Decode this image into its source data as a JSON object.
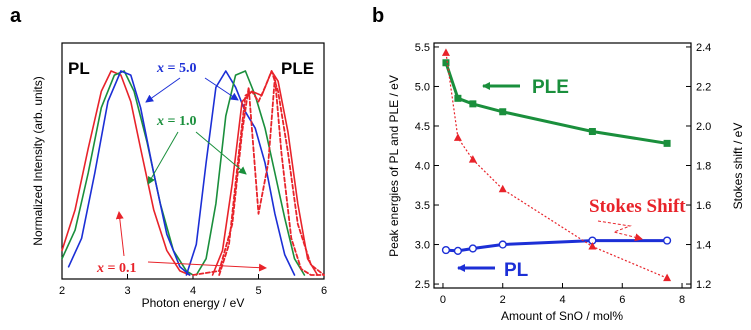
{
  "colors": {
    "x_0_1": "#e8232a",
    "x_1_0": "#1a8f3c",
    "x_5_0": "#1c2fd6",
    "pl": "#1c2fd6",
    "ple": "#1a8f3c",
    "stokes": "#e8232a"
  },
  "chart_data": [
    {
      "panel_label": "a",
      "type": "line",
      "xlabel": "Photon energy / eV",
      "ylabel": "Normalized Intensity (arb. units)",
      "xlim": [
        2,
        6
      ],
      "xticks": [
        "2",
        "3",
        "4",
        "5",
        "6"
      ],
      "region_labels": {
        "pl": "PL",
        "ple": "PLE"
      },
      "x_label_prefix": "x",
      "annotations": [
        {
          "text": " = 5.0",
          "series": "x = 5.0"
        },
        {
          "text": " = 1.0",
          "series": "x = 1.0"
        },
        {
          "text": " = 0.1",
          "series": "x = 0.1"
        }
      ],
      "series": [
        {
          "name": "x = 0.1",
          "kind": "PL",
          "line": "solid",
          "x": [
            2.0,
            2.2,
            2.4,
            2.6,
            2.75,
            2.9,
            3.05,
            3.2,
            3.4,
            3.6,
            3.8,
            3.95
          ],
          "y": [
            0.12,
            0.32,
            0.62,
            0.9,
            1.0,
            0.98,
            0.85,
            0.62,
            0.32,
            0.12,
            0.02,
            0.0
          ]
        },
        {
          "name": "x = 1.0",
          "kind": "PL",
          "line": "solid",
          "x": [
            2.0,
            2.2,
            2.4,
            2.6,
            2.8,
            2.95,
            3.1,
            3.3,
            3.5,
            3.7,
            3.9,
            4.0
          ],
          "y": [
            0.08,
            0.22,
            0.5,
            0.82,
            0.98,
            1.0,
            0.9,
            0.65,
            0.35,
            0.12,
            0.02,
            0.0
          ]
        },
        {
          "name": "x = 5.0",
          "kind": "PL",
          "line": "solid",
          "x": [
            2.1,
            2.3,
            2.5,
            2.7,
            2.9,
            3.05,
            3.2,
            3.4,
            3.6,
            3.8,
            3.95
          ],
          "y": [
            0.04,
            0.18,
            0.5,
            0.85,
            1.0,
            0.98,
            0.82,
            0.5,
            0.2,
            0.04,
            0.0
          ]
        },
        {
          "name": "x = 5.0",
          "kind": "PLE",
          "line": "solid",
          "x": [
            3.9,
            4.05,
            4.2,
            4.35,
            4.5,
            4.65,
            4.8,
            4.95,
            5.1,
            5.25,
            5.4,
            5.55
          ],
          "y": [
            0.0,
            0.15,
            0.55,
            0.92,
            1.0,
            0.92,
            0.8,
            0.72,
            0.55,
            0.3,
            0.1,
            0.0
          ]
        },
        {
          "name": "x = 1.0",
          "kind": "PLE",
          "line": "solid",
          "x": [
            4.05,
            4.2,
            4.35,
            4.5,
            4.65,
            4.8,
            4.95,
            5.1,
            5.25,
            5.4,
            5.55,
            5.7
          ],
          "y": [
            0.0,
            0.08,
            0.35,
            0.78,
            0.98,
            1.0,
            0.88,
            0.72,
            0.5,
            0.28,
            0.08,
            0.0
          ]
        },
        {
          "name": "x = 0.1",
          "kind": "PLE",
          "line": "solid",
          "x": [
            4.3,
            4.45,
            4.6,
            4.75,
            4.9,
            5.05,
            5.2,
            5.3,
            5.45,
            5.6,
            5.75,
            5.9
          ],
          "y": [
            0.0,
            0.12,
            0.45,
            0.85,
            0.9,
            0.88,
            1.0,
            0.95,
            0.7,
            0.35,
            0.08,
            0.0
          ]
        },
        {
          "name": "x = 0.1",
          "kind": "PL",
          "line": "dashed",
          "x": [
            4.0,
            4.4,
            4.6,
            4.75,
            4.85,
            5.0,
            5.15,
            5.25,
            5.35,
            5.5,
            5.65,
            5.8,
            6.0
          ],
          "y": [
            0.0,
            0.02,
            0.25,
            0.7,
            0.92,
            0.3,
            0.55,
            0.97,
            0.6,
            0.18,
            0.03,
            0.0,
            0.0
          ]
        },
        {
          "name": "x = 0.1",
          "kind": "PLE",
          "line": "dashed",
          "x": [
            4.4,
            4.55,
            4.7,
            4.8,
            4.9,
            5.0,
            5.1,
            5.2,
            5.3,
            5.45,
            5.6,
            5.8,
            6.0
          ],
          "y": [
            0.0,
            0.15,
            0.6,
            0.88,
            0.9,
            0.85,
            0.92,
            1.0,
            0.9,
            0.6,
            0.25,
            0.05,
            0.0
          ]
        }
      ]
    },
    {
      "panel_label": "b",
      "type": "line",
      "xlabel": "Amount of SnO / mol%",
      "ylabel": "Peak energies of PL and PLE / eV",
      "y2label": "Stokes shift / eV",
      "xlim": [
        -0.3,
        8.3
      ],
      "ylim": [
        2.45,
        5.55
      ],
      "y2lim": [
        1.18,
        2.42
      ],
      "xticks": [
        "0",
        "2",
        "4",
        "6",
        "8"
      ],
      "yticks": [
        "2.5",
        "3.0",
        "3.5",
        "4.0",
        "4.5",
        "5.0",
        "5.5"
      ],
      "y2ticks": [
        "1.2",
        "1.4",
        "1.6",
        "1.8",
        "2.0",
        "2.2",
        "2.4"
      ],
      "series": [
        {
          "name": "PLE",
          "axis": "left",
          "x": [
            0.1,
            0.5,
            1.0,
            2.0,
            5.0,
            7.5
          ],
          "y": [
            5.3,
            4.85,
            4.78,
            4.68,
            4.43,
            4.28
          ]
        },
        {
          "name": "PL",
          "axis": "left",
          "x": [
            0.1,
            0.5,
            1.0,
            2.0,
            5.0,
            7.5
          ],
          "y": [
            2.93,
            2.92,
            2.95,
            3.0,
            3.05,
            3.05
          ]
        },
        {
          "name": "Stokes Shift",
          "axis": "right",
          "x": [
            0.1,
            0.5,
            1.0,
            2.0,
            5.0,
            7.5
          ],
          "y": [
            2.37,
            1.94,
            1.83,
            1.68,
            1.39,
            1.23
          ]
        }
      ]
    }
  ]
}
